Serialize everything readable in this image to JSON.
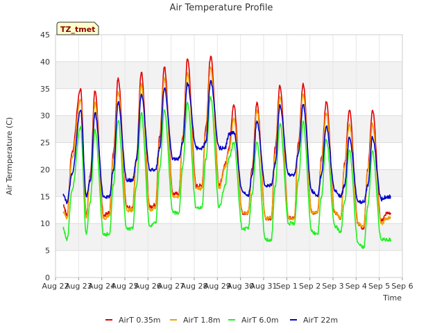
{
  "chart_data": {
    "type": "line",
    "title": "Air Temperature Profile",
    "xlabel": "Time",
    "ylabel": "Air Termperature (C)",
    "badge": "TZ_tmet",
    "ylim": [
      0,
      45
    ],
    "yticks": [
      0,
      5,
      10,
      15,
      20,
      25,
      30,
      35,
      40,
      45
    ],
    "xlim": [
      "Aug 22",
      "Sep 6"
    ],
    "xticks": [
      "Aug 22",
      "Aug 23",
      "Aug 24",
      "Aug 25",
      "Aug 26",
      "Aug 27",
      "Aug 28",
      "Aug 29",
      "Aug 30",
      "Aug 31",
      "Sep 1",
      "Sep 2",
      "Sep 3",
      "Sep 4",
      "Sep 5",
      "Sep 6"
    ],
    "grid": true,
    "legend_position": "bottom",
    "series": [
      {
        "name": "AirT 0.35m",
        "color": "#e00000",
        "x": [
          "Aug 22 08:00",
          "Aug 22 12:00",
          "Aug 22 17:00",
          "Aug 23 02:00",
          "Aug 23 08:00",
          "Aug 23 12:00",
          "Aug 23 17:00",
          "Aug 24 02:00",
          "Aug 24 08:00",
          "Aug 24 12:00",
          "Aug 24 17:00",
          "Aug 25 02:00",
          "Aug 25 08:00",
          "Aug 25 12:00",
          "Aug 25 17:00",
          "Aug 26 02:00",
          "Aug 26 08:00",
          "Aug 26 12:00",
          "Aug 26 17:00",
          "Aug 27 02:00",
          "Aug 27 08:00",
          "Aug 27 12:00",
          "Aug 27 17:00",
          "Aug 28 02:00",
          "Aug 28 08:00",
          "Aug 28 12:00",
          "Aug 28 17:00",
          "Aug 29 02:00",
          "Aug 29 08:00",
          "Aug 29 12:00",
          "Aug 29 17:00",
          "Aug 30 02:00",
          "Aug 30 08:00",
          "Aug 30 12:00",
          "Aug 30 17:00",
          "Aug 31 02:00",
          "Aug 31 08:00",
          "Aug 31 12:00",
          "Aug 31 17:00",
          "Sep 1 02:00",
          "Sep 1 08:00",
          "Sep 1 12:00",
          "Sep 1 17:00",
          "Sep 2 02:00",
          "Sep 2 08:00",
          "Sep 2 12:00",
          "Sep 2 17:00",
          "Sep 3 02:00",
          "Sep 3 08:00",
          "Sep 3 12:00",
          "Sep 3 17:00",
          "Sep 4 02:00",
          "Sep 4 08:00",
          "Sep 4 12:00",
          "Sep 4 17:00",
          "Sep 5 02:00",
          "Sep 5 08:00",
          "Sep 5 12:00"
        ],
        "y": [
          13.5,
          11.5,
          23,
          35,
          11.5,
          19,
          34.5,
          11.5,
          12,
          23,
          37,
          13,
          13,
          22,
          38,
          13,
          13.5,
          26,
          39,
          15.5,
          15.5,
          26,
          40.5,
          17,
          17,
          28,
          41,
          17,
          21,
          24,
          32,
          12,
          12,
          20,
          32.5,
          11,
          11,
          24,
          35.5,
          11,
          11,
          25,
          36,
          12,
          12,
          22,
          32.5,
          12,
          11,
          21,
          31,
          10,
          9,
          20,
          31,
          10.5,
          12,
          12
        ]
      },
      {
        "name": "AirT 1.8m",
        "color": "#f0a000",
        "x": [
          "Aug 22 08:00",
          "Aug 22 12:00",
          "Aug 22 17:00",
          "Aug 23 02:00",
          "Aug 23 08:00",
          "Aug 23 12:00",
          "Aug 23 17:00",
          "Aug 24 02:00",
          "Aug 24 08:00",
          "Aug 24 12:00",
          "Aug 24 17:00",
          "Aug 25 02:00",
          "Aug 25 08:00",
          "Aug 25 12:00",
          "Aug 25 17:00",
          "Aug 26 02:00",
          "Aug 26 08:00",
          "Aug 26 12:00",
          "Aug 26 17:00",
          "Aug 27 02:00",
          "Aug 27 08:00",
          "Aug 27 12:00",
          "Aug 27 17:00",
          "Aug 28 02:00",
          "Aug 28 08:00",
          "Aug 28 12:00",
          "Aug 28 17:00",
          "Aug 29 02:00",
          "Aug 29 08:00",
          "Aug 29 12:00",
          "Aug 29 17:00",
          "Aug 30 02:00",
          "Aug 30 08:00",
          "Aug 30 12:00",
          "Aug 30 17:00",
          "Aug 31 02:00",
          "Aug 31 08:00",
          "Aug 31 12:00",
          "Aug 31 17:00",
          "Sep 1 02:00",
          "Sep 1 08:00",
          "Sep 1 12:00",
          "Sep 1 17:00",
          "Sep 2 02:00",
          "Sep 2 08:00",
          "Sep 2 12:00",
          "Sep 2 17:00",
          "Sep 3 02:00",
          "Sep 3 08:00",
          "Sep 3 12:00",
          "Sep 3 17:00",
          "Sep 4 02:00",
          "Sep 4 08:00",
          "Sep 4 12:00",
          "Sep 4 17:00",
          "Sep 5 02:00",
          "Sep 5 08:00",
          "Sep 5 12:00"
        ],
        "y": [
          12,
          11,
          22,
          33,
          11,
          18.5,
          32.5,
          11,
          11.5,
          22,
          34.5,
          12.5,
          12.5,
          21.5,
          36,
          12.5,
          13,
          25,
          37,
          15,
          15,
          25.5,
          38,
          16.5,
          16.5,
          27,
          39,
          16.5,
          20.5,
          23.5,
          29.5,
          12,
          12,
          19.5,
          31,
          11,
          11,
          23,
          33.5,
          11,
          11,
          24,
          34,
          12,
          12,
          21.5,
          30.5,
          12,
          11,
          20.5,
          28.5,
          10,
          9.5,
          19.5,
          28.5,
          10,
          11,
          11
        ]
      },
      {
        "name": "AirT 6.0m",
        "color": "#22ee22",
        "x": [
          "Aug 22 08:00",
          "Aug 22 12:00",
          "Aug 22 17:00",
          "Aug 23 02:00",
          "Aug 23 08:00",
          "Aug 23 12:00",
          "Aug 23 17:00",
          "Aug 24 02:00",
          "Aug 24 08:00",
          "Aug 24 12:00",
          "Aug 24 17:00",
          "Aug 25 02:00",
          "Aug 25 08:00",
          "Aug 25 12:00",
          "Aug 25 17:00",
          "Aug 26 02:00",
          "Aug 26 08:00",
          "Aug 26 12:00",
          "Aug 26 17:00",
          "Aug 27 02:00",
          "Aug 27 08:00",
          "Aug 27 12:00",
          "Aug 27 17:00",
          "Aug 28 02:00",
          "Aug 28 08:00",
          "Aug 28 12:00",
          "Aug 28 17:00",
          "Aug 29 02:00",
          "Aug 29 08:00",
          "Aug 29 12:00",
          "Aug 29 17:00",
          "Aug 30 02:00",
          "Aug 30 08:00",
          "Aug 30 12:00",
          "Aug 30 17:00",
          "Aug 31 02:00",
          "Aug 31 08:00",
          "Aug 31 12:00",
          "Aug 31 17:00",
          "Sep 1 02:00",
          "Sep 1 08:00",
          "Sep 1 12:00",
          "Sep 1 17:00",
          "Sep 2 02:00",
          "Sep 2 08:00",
          "Sep 2 12:00",
          "Sep 2 17:00",
          "Sep 3 02:00",
          "Sep 3 08:00",
          "Sep 3 12:00",
          "Sep 3 17:00",
          "Sep 4 02:00",
          "Sep 4 08:00",
          "Sep 4 12:00",
          "Sep 4 17:00",
          "Sep 5 02:00",
          "Sep 5 08:00",
          "Sep 5 12:00"
        ],
        "y": [
          9,
          7,
          16,
          28,
          8,
          14,
          27.5,
          8,
          8,
          17,
          29,
          9,
          9,
          17,
          30.5,
          9.5,
          10,
          20,
          31,
          12,
          12,
          20.5,
          32.5,
          13,
          13,
          22,
          33.5,
          13,
          17,
          22,
          25,
          9,
          9,
          15.5,
          25,
          7,
          7,
          17,
          28.5,
          10,
          10,
          18,
          29,
          8.5,
          8,
          15,
          25.5,
          9.5,
          8.5,
          14,
          23.5,
          6.5,
          5.5,
          13,
          23.5,
          7,
          7,
          7
        ]
      },
      {
        "name": "AirT 22m",
        "color": "#0000cc",
        "x": [
          "Aug 22 08:00",
          "Aug 22 12:00",
          "Aug 22 17:00",
          "Aug 23 02:00",
          "Aug 23 08:00",
          "Aug 23 12:00",
          "Aug 23 17:00",
          "Aug 24 02:00",
          "Aug 24 08:00",
          "Aug 24 12:00",
          "Aug 24 17:00",
          "Aug 25 02:00",
          "Aug 25 08:00",
          "Aug 25 12:00",
          "Aug 25 17:00",
          "Aug 26 02:00",
          "Aug 26 08:00",
          "Aug 26 12:00",
          "Aug 26 17:00",
          "Aug 27 02:00",
          "Aug 27 08:00",
          "Aug 27 12:00",
          "Aug 27 17:00",
          "Aug 28 02:00",
          "Aug 28 08:00",
          "Aug 28 12:00",
          "Aug 28 17:00",
          "Aug 29 02:00",
          "Aug 29 08:00",
          "Aug 29 12:00",
          "Aug 29 17:00",
          "Aug 30 02:00",
          "Aug 30 08:00",
          "Aug 30 12:00",
          "Aug 30 17:00",
          "Aug 31 02:00",
          "Aug 31 08:00",
          "Aug 31 12:00",
          "Aug 31 17:00",
          "Sep 1 02:00",
          "Sep 1 08:00",
          "Sep 1 12:00",
          "Sep 1 17:00",
          "Sep 2 02:00",
          "Sep 2 08:00",
          "Sep 2 12:00",
          "Sep 2 17:00",
          "Sep 3 02:00",
          "Sep 3 08:00",
          "Sep 3 12:00",
          "Sep 3 17:00",
          "Sep 4 02:00",
          "Sep 4 08:00",
          "Sep 4 12:00",
          "Sep 4 17:00",
          "Sep 5 02:00",
          "Sep 5 08:00",
          "Sep 5 12:00"
        ],
        "y": [
          15.5,
          14,
          19,
          31,
          15,
          18,
          30.5,
          15,
          15,
          20,
          32.5,
          18,
          18,
          22,
          34,
          20,
          20,
          24,
          35,
          22,
          22,
          25,
          36,
          24,
          24,
          25,
          36.5,
          24,
          24,
          26.5,
          27,
          16,
          15,
          19,
          29,
          17,
          17,
          21,
          32,
          19,
          19,
          23,
          32,
          16,
          15,
          19,
          28,
          16,
          15,
          17,
          26,
          14,
          14,
          17,
          26,
          14.5,
          15,
          15
        ]
      }
    ]
  }
}
